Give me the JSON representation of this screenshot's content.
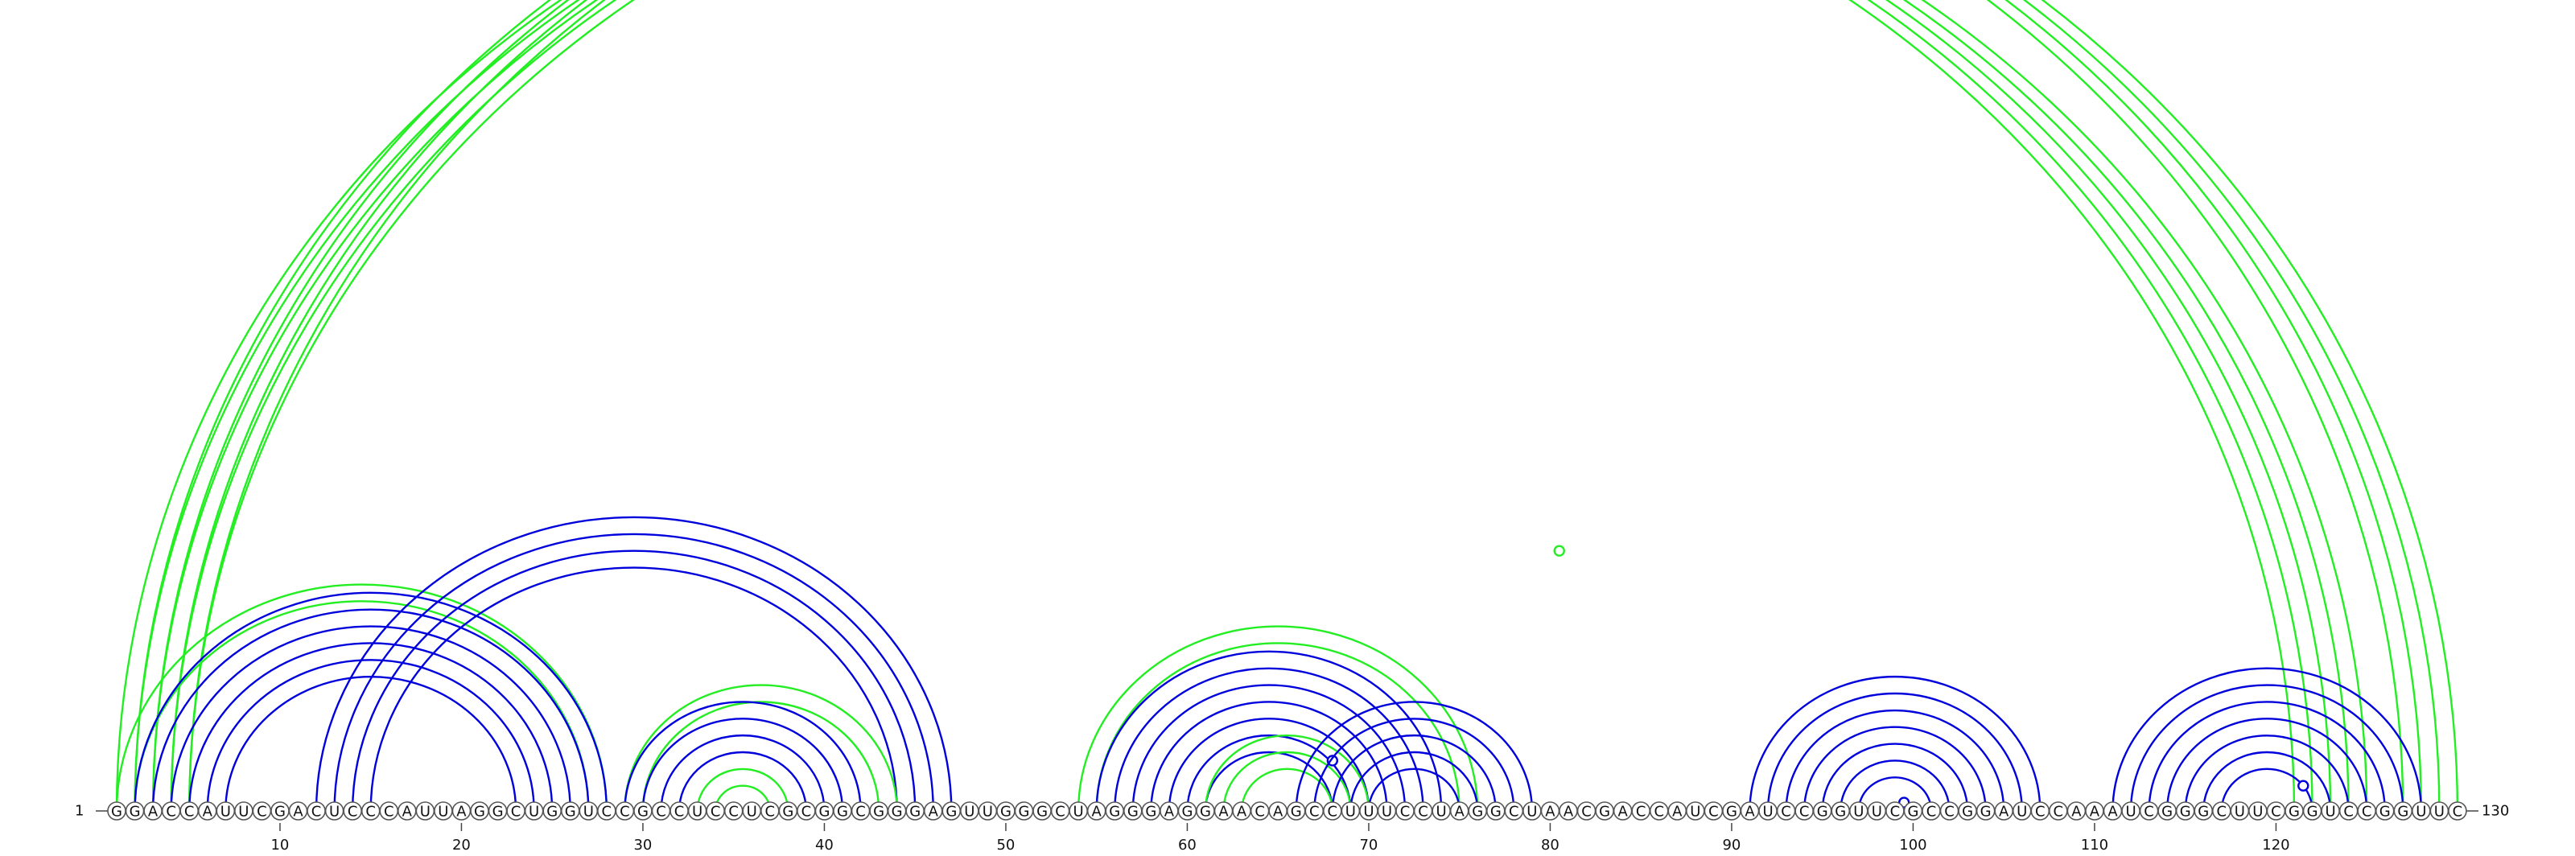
{
  "sequence": "GGACCAUUCGACUCCCAUUAGGCUGGUCCGCCUCCUCGCGGCGGGAGUUGGGCUAGGGAGGAACAGCCUUUCCUAGGCUAACGACCAUCGAUCCGGUUCGCCGGAUCCAAAUCGGGCUUCGGUCCGGUUC",
  "start_label": "1",
  "end_label": "130",
  "ticks": [
    "10",
    "20",
    "30",
    "40",
    "50",
    "60",
    "70",
    "80",
    "90",
    "100",
    "110",
    "120"
  ],
  "colors": {
    "blue": "#0000dd",
    "green": "#22ee22"
  },
  "arc_groups": [
    {
      "name": "long-range-green-1",
      "color": "green",
      "pairs": [
        [
          1,
          121
        ],
        [
          2,
          122
        ],
        [
          3,
          123
        ],
        [
          4,
          124
        ],
        [
          5,
          125
        ]
      ]
    },
    {
      "name": "long-range-green-2",
      "color": "green",
      "pairs": [
        [
          2,
          127
        ],
        [
          3,
          128
        ],
        [
          4,
          129
        ],
        [
          5,
          130
        ]
      ],
      "marker": [
        65,
        31
      ]
    },
    {
      "name": "green-outer-1",
      "color": "green",
      "pairs": [
        [
          1,
          28
        ],
        [
          2,
          27
        ]
      ]
    },
    {
      "name": "blue-helix-1",
      "color": "blue",
      "pairs": [
        [
          2,
          28
        ],
        [
          3,
          27
        ],
        [
          4,
          26
        ],
        [
          5,
          25
        ],
        [
          6,
          24
        ],
        [
          7,
          23
        ]
      ]
    },
    {
      "name": "blue-helix-2",
      "color": "blue",
      "pairs": [
        [
          12,
          47
        ],
        [
          13,
          46
        ],
        [
          14,
          45
        ],
        [
          15,
          44
        ]
      ]
    },
    {
      "name": "green-helix-1",
      "color": "green",
      "pairs": [
        [
          29,
          44
        ],
        [
          30,
          43
        ]
      ]
    },
    {
      "name": "blue-helix-3",
      "color": "blue",
      "pairs": [
        [
          29,
          42
        ],
        [
          30,
          41
        ],
        [
          31,
          40
        ],
        [
          32,
          39
        ]
      ]
    },
    {
      "name": "green-helix-2",
      "color": "green",
      "pairs": [
        [
          33,
          38
        ],
        [
          34,
          37
        ]
      ]
    },
    {
      "name": "green-helix-3",
      "color": "green",
      "pairs": [
        [
          54,
          76
        ],
        [
          55,
          75
        ]
      ]
    },
    {
      "name": "blue-helix-4",
      "color": "blue",
      "pairs": [
        [
          55,
          74
        ],
        [
          56,
          73
        ],
        [
          57,
          72
        ],
        [
          58,
          71
        ],
        [
          59,
          70
        ],
        [
          60,
          69
        ],
        [
          61,
          68
        ]
      ],
      "marker": [
        65,
        6
      ]
    },
    {
      "name": "green-helix-4",
      "color": "green",
      "pairs": [
        [
          61,
          70
        ],
        [
          62,
          69
        ],
        [
          63,
          68
        ]
      ]
    },
    {
      "name": "blue-helix-5",
      "color": "blue",
      "pairs": [
        [
          66,
          79
        ],
        [
          67,
          78
        ],
        [
          68,
          77
        ],
        [
          69,
          76
        ],
        [
          70,
          75
        ]
      ]
    },
    {
      "name": "blue-helix-6",
      "color": "blue",
      "pairs": [
        [
          91,
          107
        ],
        [
          92,
          106
        ],
        [
          93,
          105
        ],
        [
          94,
          104
        ],
        [
          95,
          103
        ],
        [
          96,
          102
        ],
        [
          97,
          101
        ]
      ],
      "marker": [
        99,
        1
      ]
    },
    {
      "name": "blue-helix-7",
      "color": "blue",
      "pairs": [
        [
          111,
          128
        ],
        [
          112,
          127
        ],
        [
          113,
          126
        ],
        [
          114,
          125
        ],
        [
          115,
          124
        ],
        [
          116,
          123
        ],
        [
          117,
          122
        ]
      ],
      "marker": [
        120,
        3
      ]
    }
  ]
}
